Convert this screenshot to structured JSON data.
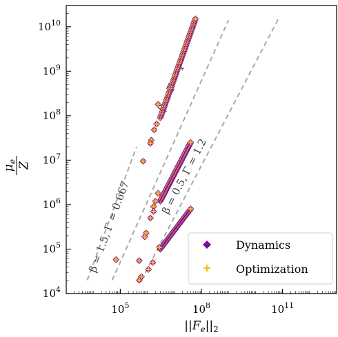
{
  "chart_data": {
    "type": "scatter",
    "xscale": "log",
    "yscale": "log",
    "xlim": [
      1000,
      10000000000000.0
    ],
    "ylim": [
      10000,
      30000000000.0
    ],
    "xlabel": "||F_e||_2",
    "ylabel": "μ_e / Z",
    "x_ticks": [
      {
        "base": "10",
        "exp": "5",
        "value": 100000
      },
      {
        "base": "10",
        "exp": "8",
        "value": 100000000
      },
      {
        "base": "10",
        "exp": "11",
        "value": 100000000000
      }
    ],
    "y_ticks": [
      {
        "base": "10",
        "exp": "4",
        "value": 10000
      },
      {
        "base": "10",
        "exp": "5",
        "value": 100000
      },
      {
        "base": "10",
        "exp": "6",
        "value": 1000000
      },
      {
        "base": "10",
        "exp": "7",
        "value": 10000000
      },
      {
        "base": "10",
        "exp": "8",
        "value": 100000000
      },
      {
        "base": "10",
        "exp": "9",
        "value": 1000000000
      },
      {
        "base": "10",
        "exp": "10",
        "value": 10000000000
      }
    ],
    "reference_lines": [
      {
        "label": "β = 1.5, Γ ≃ 0.667",
        "x": [
          6000,
          400000
        ],
        "y": [
          20000,
          20000000
        ],
        "label_at": [
          50000,
          300000
        ]
      },
      {
        "label": "β = Γ = 1",
        "x": [
          50000,
          1000000000
        ],
        "y": [
          20000,
          14000000000
        ],
        "label_at": [
          10000000,
          400000000
        ]
      },
      {
        "label": "β = 0.5, Γ = 1.2",
        "x": [
          600000,
          70000000000
        ],
        "y": [
          20000,
          15000000000
        ],
        "label_at": [
          30000000,
          4000000
        ]
      }
    ],
    "series": [
      {
        "name": "Dynamics",
        "marker": "diamond",
        "color": "#7a0d9a",
        "clusters": [
          {
            "x": [
              3000000,
              60000000
            ],
            "y": [
              90000000,
              15000000000
            ]
          },
          {
            "x": [
              3000000,
              40000000
            ],
            "y": [
              1200000,
              25000000
            ]
          },
          {
            "x": [
              3000000,
              40000000
            ],
            "y": [
              100000,
              800000
            ]
          }
        ],
        "points": [
          [
            2500000,
            180000000
          ],
          [
            2200000,
            65000000
          ],
          [
            1800000,
            48000000
          ],
          [
            1400000,
            28000000
          ],
          [
            1300000,
            24000000
          ],
          [
            700000,
            9500000
          ],
          [
            2500000,
            1800000
          ],
          [
            2000000,
            1200000
          ],
          [
            1700000,
            900000
          ],
          [
            1700000,
            700000
          ],
          [
            1300000,
            500000
          ],
          [
            900000,
            230000
          ],
          [
            800000,
            190000
          ],
          [
            500000,
            55000
          ],
          [
            70000,
            58000
          ],
          [
            2800000,
            110000
          ],
          [
            1600000,
            50000
          ],
          [
            1100000,
            35000
          ],
          [
            600000,
            24000
          ],
          [
            500000,
            20000
          ]
        ]
      },
      {
        "name": "Optimization",
        "marker": "plus",
        "color": "#fcb82b"
      }
    ],
    "legend": {
      "position": "bottom-right"
    }
  }
}
